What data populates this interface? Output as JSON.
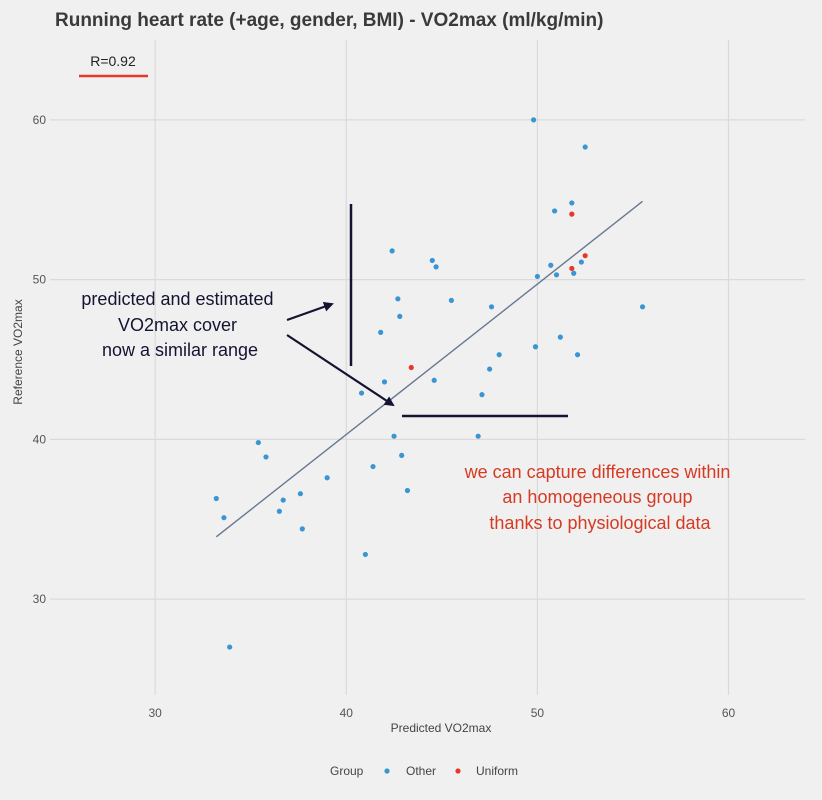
{
  "chart_data": {
    "type": "scatter",
    "title": "Running heart rate (+age, gender, BMI) - VO2max (ml/kg/min)",
    "xlabel": "Predicted VO2max",
    "ylabel": "Reference VO2max",
    "xlim": [
      24.5,
      64
    ],
    "ylim": [
      24,
      65
    ],
    "xticks": [
      30,
      40,
      50,
      60
    ],
    "yticks": [
      30,
      40,
      50,
      60
    ],
    "grid": true,
    "legend_title": "Group",
    "legend_position": "bottom",
    "series": [
      {
        "name": "Other",
        "color": "#3a95d4",
        "points": [
          [
            33.2,
            36.3
          ],
          [
            33.6,
            35.1
          ],
          [
            33.9,
            27.0
          ],
          [
            35.4,
            39.8
          ],
          [
            35.8,
            38.9
          ],
          [
            36.5,
            35.5
          ],
          [
            36.7,
            36.2
          ],
          [
            37.6,
            36.6
          ],
          [
            37.7,
            34.4
          ],
          [
            39.0,
            37.6
          ],
          [
            40.8,
            42.9
          ],
          [
            41.0,
            32.8
          ],
          [
            41.4,
            38.3
          ],
          [
            41.8,
            46.7
          ],
          [
            42.0,
            43.6
          ],
          [
            42.4,
            51.8
          ],
          [
            42.5,
            40.2
          ],
          [
            42.7,
            48.8
          ],
          [
            42.8,
            47.7
          ],
          [
            42.9,
            39.0
          ],
          [
            43.2,
            36.8
          ],
          [
            44.5,
            51.2
          ],
          [
            44.6,
            43.7
          ],
          [
            44.7,
            50.8
          ],
          [
            45.5,
            48.7
          ],
          [
            46.9,
            40.2
          ],
          [
            47.1,
            42.8
          ],
          [
            47.5,
            44.4
          ],
          [
            47.6,
            48.3
          ],
          [
            48.0,
            45.3
          ],
          [
            49.8,
            60.0
          ],
          [
            49.9,
            45.8
          ],
          [
            50.0,
            50.2
          ],
          [
            50.7,
            50.9
          ],
          [
            50.9,
            54.3
          ],
          [
            51.0,
            50.3
          ],
          [
            51.2,
            46.4
          ],
          [
            51.8,
            54.8
          ],
          [
            51.9,
            50.4
          ],
          [
            52.1,
            45.3
          ],
          [
            52.3,
            51.1
          ],
          [
            52.5,
            58.3
          ],
          [
            55.5,
            48.3
          ]
        ]
      },
      {
        "name": "Uniform",
        "color": "#e8382a",
        "points": [
          [
            43.4,
            44.5
          ],
          [
            51.8,
            54.1
          ],
          [
            51.8,
            50.7
          ],
          [
            52.5,
            51.5
          ]
        ]
      }
    ],
    "fit_line": {
      "x": [
        33.2,
        55.5
      ],
      "y": [
        33.9,
        54.9
      ],
      "color": "#66778f"
    },
    "stat_label": "R=0.92"
  },
  "annotations": {
    "left_text": [
      "predicted and estimated",
      "VO2max cover",
      "now a similar range"
    ],
    "right_text": [
      "we can capture differences within",
      "an homogeneous group",
      "thanks to physiological data"
    ]
  },
  "colors": {
    "background": "#f0f0f0",
    "grid": "#dadada",
    "annotation_dark": "#141432",
    "annotation_red": "#d63a22"
  }
}
